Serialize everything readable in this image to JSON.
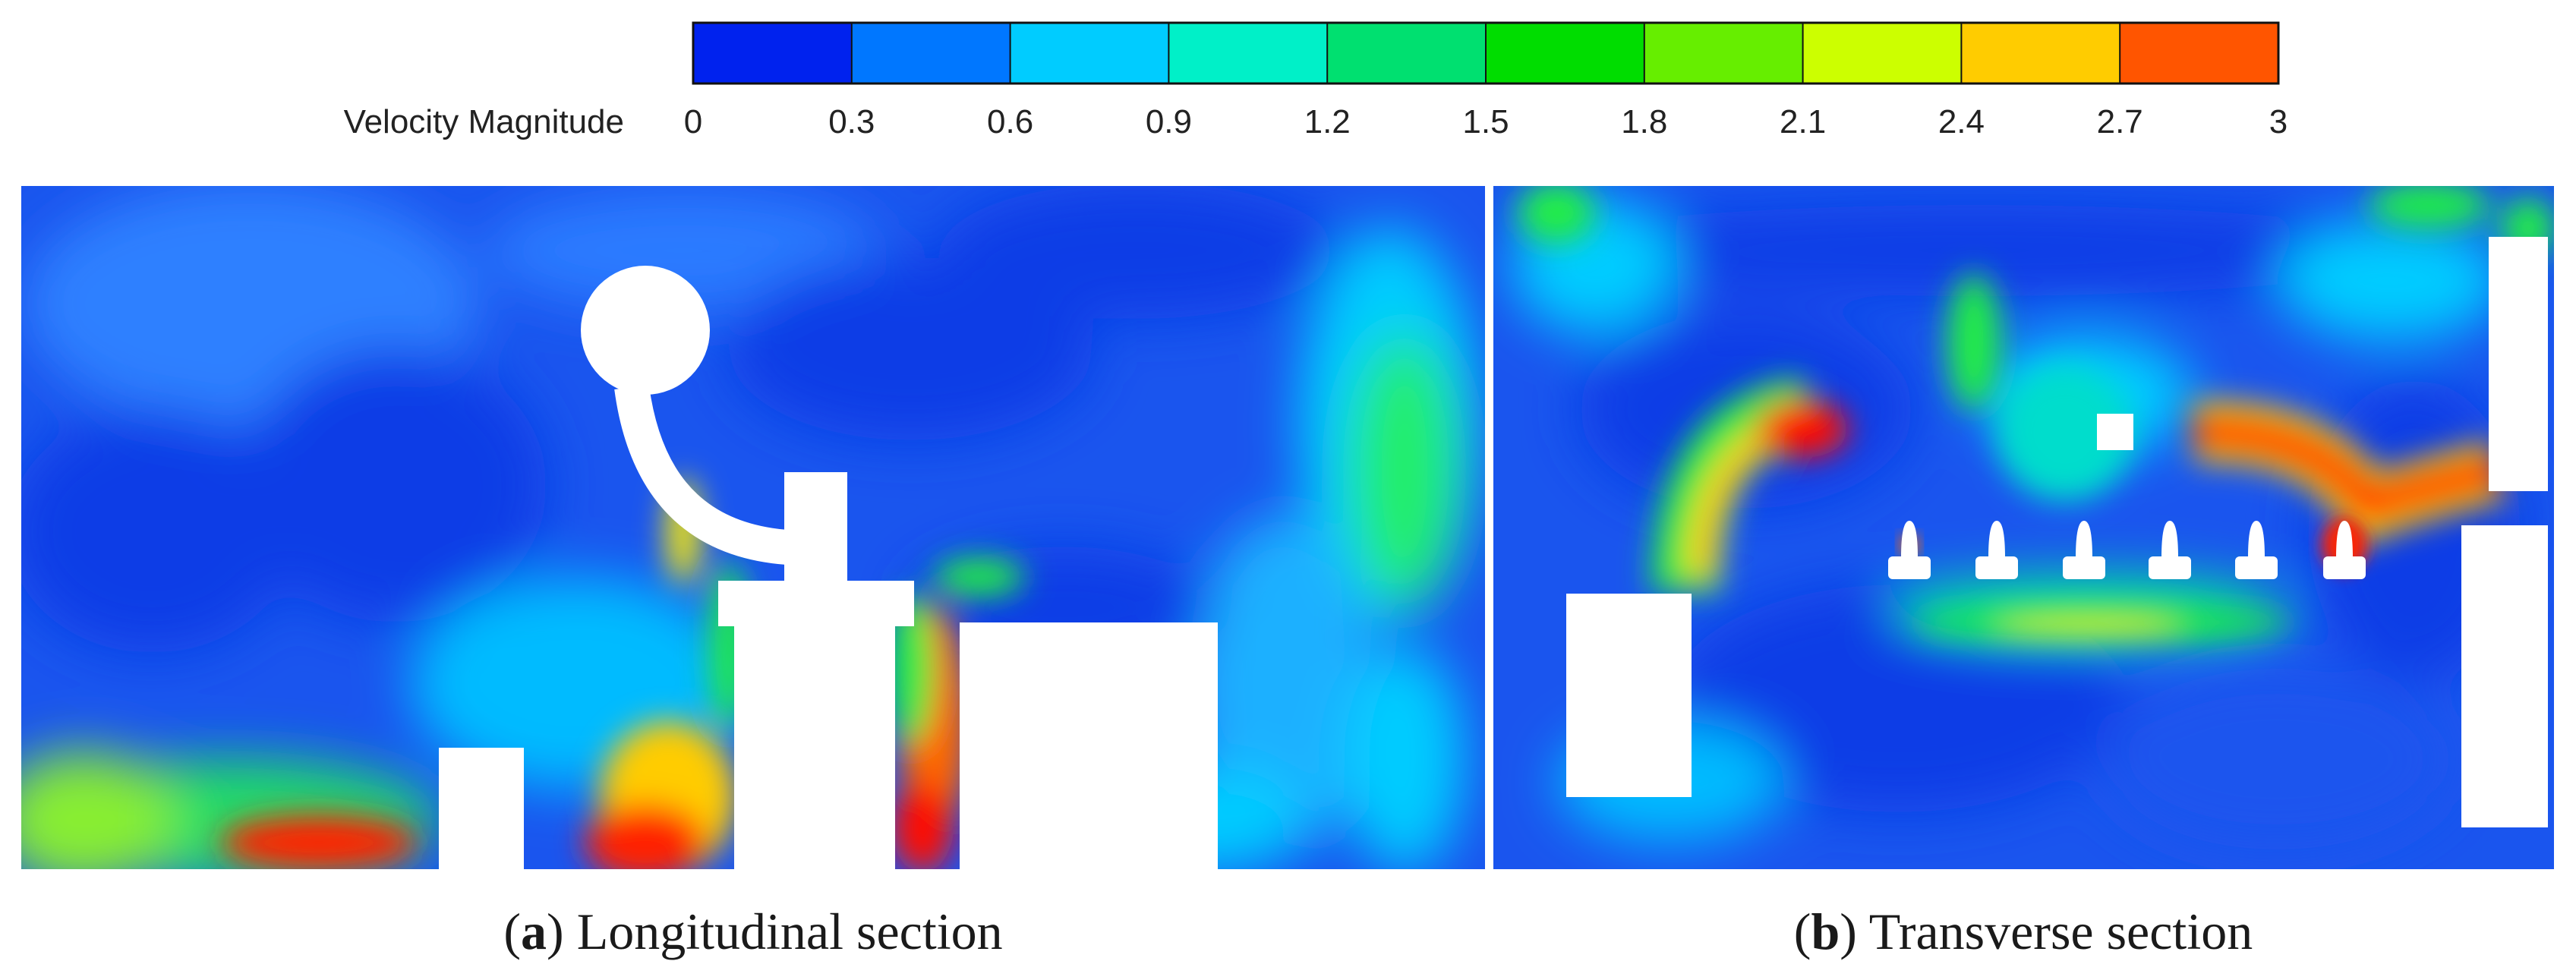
{
  "colorbar": {
    "title": "Velocity Magnitude",
    "ticks": [
      "0",
      "0.3",
      "0.6",
      "0.9",
      "1.2",
      "1.5",
      "1.8",
      "2.1",
      "2.4",
      "2.7",
      "3"
    ],
    "min": 0,
    "max": 3,
    "band_colors": [
      "#0022ee",
      "#0077ff",
      "#00ccff",
      "#00f0c8",
      "#00e070",
      "#00dd00",
      "#66ee00",
      "#ccff00",
      "#ffcc00",
      "#ff5500"
    ]
  },
  "panels": [
    {
      "letter": "a",
      "caption": "Longitudinal section"
    },
    {
      "letter": "b",
      "caption": "Transverse section"
    }
  ],
  "palette": {
    "background_field": "#1a55ee",
    "low": "#0a3ee6",
    "mid": "#00ccff",
    "green": "#22ee44",
    "yellow": "#ffee00",
    "high": "#ff2200",
    "obstacle": "#ffffff"
  }
}
